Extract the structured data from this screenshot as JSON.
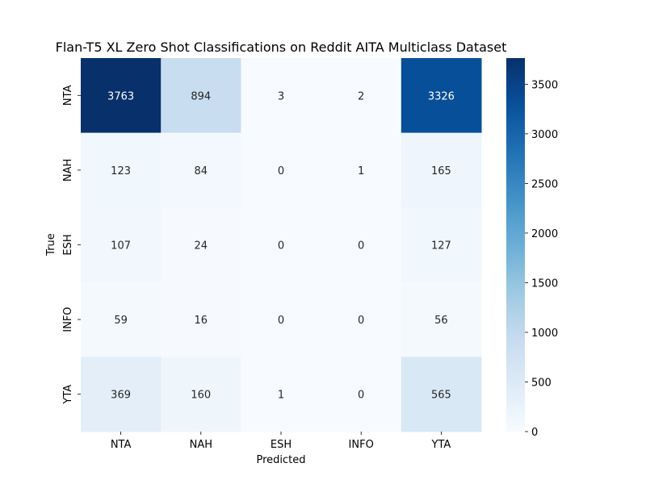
{
  "chart_data": {
    "type": "heatmap",
    "title": "Flan-T5 XL Zero Shot Classifications on Reddit AITA Multiclass Dataset",
    "xlabel": "Predicted",
    "ylabel": "True",
    "x_categories": [
      "NTA",
      "NAH",
      "ESH",
      "INFO",
      "YTA"
    ],
    "y_categories": [
      "NTA",
      "NAH",
      "ESH",
      "INFO",
      "YTA"
    ],
    "values": [
      [
        3763,
        894,
        3,
        2,
        3326
      ],
      [
        123,
        84,
        0,
        1,
        165
      ],
      [
        107,
        24,
        0,
        0,
        127
      ],
      [
        59,
        16,
        0,
        0,
        56
      ],
      [
        369,
        160,
        1,
        0,
        565
      ]
    ],
    "colorbar": {
      "min": 0,
      "max": 3763,
      "ticks": [
        0,
        500,
        1000,
        1500,
        2000,
        2500,
        3000,
        3500
      ],
      "colormap": "Blues"
    }
  }
}
